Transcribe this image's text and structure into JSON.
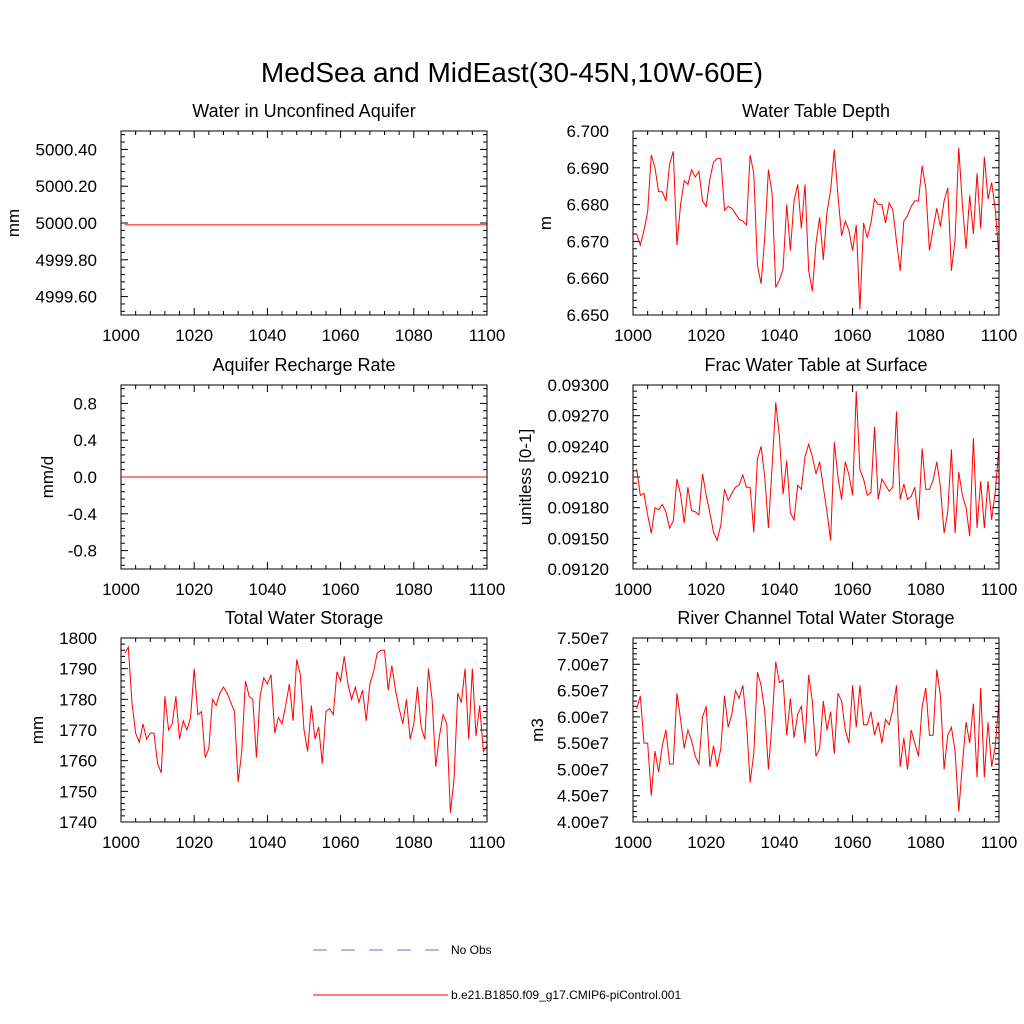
{
  "title": "MedSea and MidEast(30-45N,10W-60E)",
  "colors": {
    "series": "#ff0000",
    "obs": "#6a6ad8",
    "axis": "#000000"
  },
  "legend": {
    "obs_label": "No Obs",
    "model_label": "b.e21.B1850.f09_g17.CMIP6-piControl.001"
  },
  "chart_data": [
    {
      "type": "line",
      "title": "Water in Unconfined Aquifer",
      "xlabel": "",
      "ylabel": "mm",
      "xlim": [
        1000,
        1100
      ],
      "ylim": [
        4999.5,
        5000.5
      ],
      "xticks": [
        1000,
        1020,
        1040,
        1060,
        1080,
        1100
      ],
      "xtick_labels": [
        "1000",
        "1020",
        "1040",
        "1060",
        "1080",
        "1100"
      ],
      "yticks": [
        4999.6,
        4999.8,
        5000.0,
        5000.2,
        5000.4
      ],
      "ytick_labels": [
        "4999.60",
        "4999.80",
        "5000.00",
        "5000.20",
        "5000.40"
      ],
      "series": [
        {
          "name": "b.e21.B1850.f09_g17.CMIP6-piControl.001",
          "x": [
            1001,
            1100
          ],
          "values": [
            4999.99,
            4999.99
          ]
        }
      ]
    },
    {
      "type": "line",
      "title": "Water Table Depth",
      "xlabel": "",
      "ylabel": "m",
      "xlim": [
        1000,
        1100
      ],
      "ylim": [
        6.65,
        6.7
      ],
      "xticks": [
        1000,
        1020,
        1040,
        1060,
        1080,
        1100
      ],
      "xtick_labels": [
        "1000",
        "1020",
        "1040",
        "1060",
        "1080",
        "1100"
      ],
      "yticks": [
        6.65,
        6.66,
        6.67,
        6.68,
        6.69,
        6.7
      ],
      "ytick_labels": [
        "6.650",
        "6.660",
        "6.670",
        "6.680",
        "6.690",
        "6.700"
      ],
      "series": [
        {
          "name": "b.e21.B1850.f09_g17.CMIP6-piControl.001",
          "x0": 1001,
          "values": [
            6.672,
            6.669,
            6.673,
            6.678,
            6.6935,
            6.69,
            6.6835,
            6.6835,
            6.681,
            6.691,
            6.6945,
            6.669,
            6.68,
            6.6865,
            6.6855,
            6.6895,
            6.6875,
            6.689,
            6.681,
            6.6795,
            6.687,
            6.6915,
            6.6925,
            6.6925,
            6.6785,
            6.6795,
            6.679,
            6.6775,
            6.676,
            6.6755,
            6.6745,
            6.6935,
            6.6885,
            6.6635,
            6.6585,
            6.671,
            6.6895,
            6.683,
            6.6575,
            6.6595,
            6.6625,
            6.68,
            6.6675,
            6.681,
            6.6855,
            6.6735,
            6.6855,
            6.662,
            6.6565,
            6.6695,
            6.6765,
            6.665,
            6.678,
            6.684,
            6.695,
            6.6825,
            6.6715,
            6.6755,
            6.673,
            6.6675,
            6.6745,
            6.6515,
            6.675,
            6.671,
            6.675,
            6.6815,
            6.68,
            6.68,
            6.675,
            6.6805,
            6.6785,
            6.67,
            6.662,
            6.6755,
            6.677,
            6.6795,
            6.681,
            6.681,
            6.6905,
            6.6845,
            6.6675,
            6.6735,
            6.679,
            6.674,
            6.681,
            6.6845,
            6.662,
            6.6705,
            6.6955,
            6.68,
            6.668,
            6.6825,
            6.672,
            6.6885,
            6.6735,
            6.693,
            6.6815,
            6.686,
            6.6785,
            6.6655
          ]
        }
      ]
    },
    {
      "type": "line",
      "title": "Aquifer Recharge Rate",
      "xlabel": "",
      "ylabel": "mm/d",
      "xlim": [
        1000,
        1100
      ],
      "ylim": [
        -1.0,
        1.0
      ],
      "xticks": [
        1000,
        1020,
        1040,
        1060,
        1080,
        1100
      ],
      "xtick_labels": [
        "1000",
        "1020",
        "1040",
        "1060",
        "1080",
        "1100"
      ],
      "yticks": [
        -0.8,
        -0.4,
        0.0,
        0.4,
        0.8
      ],
      "ytick_labels": [
        "-0.8",
        "-0.4",
        "0.0",
        "0.4",
        "0.8"
      ],
      "series": [
        {
          "name": "b.e21.B1850.f09_g17.CMIP6-piControl.001",
          "x": [
            1000,
            1100
          ],
          "values": [
            0.0,
            0.0
          ]
        }
      ]
    },
    {
      "type": "line",
      "title": "Frac Water Table at Surface",
      "xlabel": "",
      "ylabel": "unitless [0-1]",
      "xlim": [
        1000,
        1100
      ],
      "ylim": [
        0.0912,
        0.093
      ],
      "xticks": [
        1000,
        1020,
        1040,
        1060,
        1080,
        1100
      ],
      "xtick_labels": [
        "1000",
        "1020",
        "1040",
        "1060",
        "1080",
        "1100"
      ],
      "yticks": [
        0.0912,
        0.0915,
        0.0918,
        0.0921,
        0.0924,
        0.0927,
        0.093
      ],
      "ytick_labels": [
        "0.09120",
        "0.09150",
        "0.09180",
        "0.09210",
        "0.09240",
        "0.09270",
        "0.09300"
      ],
      "series": [
        {
          "name": "b.e21.B1850.f09_g17.CMIP6-piControl.001",
          "x0": 1001,
          "values": [
            0.09218,
            0.09192,
            0.09194,
            0.09173,
            0.09155,
            0.0918,
            0.09178,
            0.09183,
            0.09176,
            0.0916,
            0.09167,
            0.09208,
            0.09193,
            0.09165,
            0.092,
            0.09177,
            0.09176,
            0.09173,
            0.09213,
            0.09192,
            0.09175,
            0.09156,
            0.09148,
            0.09163,
            0.09198,
            0.09187,
            0.09194,
            0.092,
            0.09202,
            0.09212,
            0.092,
            0.092,
            0.09156,
            0.09228,
            0.0924,
            0.0921,
            0.0916,
            0.0922,
            0.09283,
            0.0925,
            0.09193,
            0.09226,
            0.09175,
            0.09168,
            0.09202,
            0.09198,
            0.0923,
            0.09242,
            0.0923,
            0.09213,
            0.09225,
            0.092,
            0.09176,
            0.09148,
            0.09244,
            0.0921,
            0.09188,
            0.09225,
            0.09212,
            0.09192,
            0.09294,
            0.09217,
            0.09208,
            0.09192,
            0.09195,
            0.09259,
            0.09188,
            0.09208,
            0.09202,
            0.09196,
            0.092,
            0.09274,
            0.09188,
            0.09203,
            0.09188,
            0.09191,
            0.092,
            0.09168,
            0.09238,
            0.09198,
            0.09198,
            0.09207,
            0.09225,
            0.092,
            0.09155,
            0.09176,
            0.09237,
            0.09155,
            0.09215,
            0.09192,
            0.0918,
            0.09152,
            0.09248,
            0.0916,
            0.09206,
            0.0916,
            0.09206,
            0.09168,
            0.09196,
            0.0924
          ]
        }
      ]
    },
    {
      "type": "line",
      "title": "Total Water Storage",
      "xlabel": "",
      "ylabel": "mm",
      "xlim": [
        1000,
        1100
      ],
      "ylim": [
        1740,
        1800
      ],
      "xticks": [
        1000,
        1020,
        1040,
        1060,
        1080,
        1100
      ],
      "xtick_labels": [
        "1000",
        "1020",
        "1040",
        "1060",
        "1080",
        "1100"
      ],
      "yticks": [
        1740,
        1750,
        1760,
        1770,
        1780,
        1790,
        1800
      ],
      "ytick_labels": [
        "1740",
        "1750",
        "1760",
        "1770",
        "1780",
        "1790",
        "1800"
      ],
      "series": [
        {
          "name": "b.e21.B1850.f09_g17.CMIP6-piControl.001",
          "x0": 1001,
          "values": [
            1795,
            1797,
            1779,
            1769,
            1766,
            1772,
            1767,
            1769,
            1769,
            1759,
            1756,
            1781,
            1770,
            1772,
            1781,
            1767,
            1773,
            1770,
            1774,
            1790,
            1775,
            1776,
            1761,
            1764,
            1780,
            1778,
            1782,
            1784,
            1782,
            1779,
            1776,
            1753,
            1763,
            1786,
            1781,
            1780,
            1761,
            1781,
            1787,
            1785,
            1788,
            1769,
            1774,
            1772,
            1778,
            1785,
            1773,
            1793,
            1788,
            1770,
            1763,
            1778,
            1767,
            1771,
            1759,
            1776,
            1777,
            1775,
            1789,
            1786,
            1794,
            1785,
            1780,
            1784,
            1779,
            1783,
            1773,
            1785,
            1789,
            1795,
            1796,
            1796,
            1783,
            1791,
            1783,
            1777,
            1772,
            1780,
            1767,
            1772,
            1784,
            1771,
            1767,
            1790,
            1780,
            1758,
            1768,
            1775,
            1772,
            1743,
            1754,
            1782,
            1779,
            1790,
            1767,
            1790,
            1768,
            1778,
            1763,
            1765
          ]
        }
      ]
    },
    {
      "type": "line",
      "title": "River Channel Total Water Storage",
      "xlabel": "",
      "ylabel": "m3",
      "xlim": [
        1000,
        1100
      ],
      "ylim": [
        40000000.0,
        75000000.0
      ],
      "xticks": [
        1000,
        1020,
        1040,
        1060,
        1080,
        1100
      ],
      "xtick_labels": [
        "1000",
        "1020",
        "1040",
        "1060",
        "1080",
        "1100"
      ],
      "yticks": [
        40000000.0,
        45000000.0,
        50000000.0,
        55000000.0,
        60000000.0,
        65000000.0,
        70000000.0,
        75000000.0
      ],
      "ytick_labels": [
        "4.00e7",
        "4.50e7",
        "5.00e7",
        "5.50e7",
        "6.00e7",
        "6.50e7",
        "7.00e7",
        "7.50e7"
      ],
      "series": [
        {
          "name": "b.e21.B1850.f09_g17.CMIP6-piControl.001",
          "x0": 1001,
          "values": [
            61500000.0,
            64000000.0,
            55000000.0,
            55000000.0,
            45000000.0,
            53500000.0,
            49500000.0,
            54500000.0,
            57500000.0,
            51000000.0,
            51000000.0,
            64500000.0,
            59500000.0,
            54000000.0,
            57500000.0,
            55500000.0,
            52500000.0,
            51000000.0,
            60000000.0,
            62000000.0,
            50500000.0,
            54500000.0,
            50500000.0,
            54000000.0,
            64000000.0,
            58000000.0,
            60500000.0,
            65000000.0,
            63500000.0,
            66000000.0,
            59000000.0,
            47500000.0,
            53000000.0,
            68500000.0,
            66000000.0,
            61000000.0,
            50000000.0,
            59000000.0,
            70500000.0,
            66500000.0,
            67000000.0,
            56500000.0,
            63500000.0,
            56000000.0,
            60500000.0,
            62000000.0,
            55000000.0,
            68000000.0,
            63000000.0,
            52500000.0,
            54000000.0,
            63000000.0,
            57500000.0,
            61000000.0,
            53000000.0,
            64500000.0,
            63000000.0,
            57500000.0,
            55000000.0,
            66000000.0,
            58000000.0,
            66000000.0,
            58500000.0,
            58500000.0,
            61000000.0,
            56500000.0,
            59000000.0,
            55000000.0,
            59500000.0,
            58500000.0,
            61500000.0,
            66000000.0,
            50500000.0,
            56000000.0,
            50000000.0,
            57500000.0,
            55000000.0,
            52500000.0,
            62000000.0,
            65500000.0,
            56500000.0,
            56500000.0,
            69000000.0,
            64000000.0,
            50000000.0,
            56500000.0,
            58000000.0,
            53500000.0,
            42000000.0,
            51000000.0,
            59000000.0,
            55000000.0,
            62500000.0,
            48500000.0,
            65500000.0,
            48500000.0,
            59000000.0,
            50500000.0,
            54500000.0,
            63500000.0
          ]
        }
      ]
    }
  ]
}
